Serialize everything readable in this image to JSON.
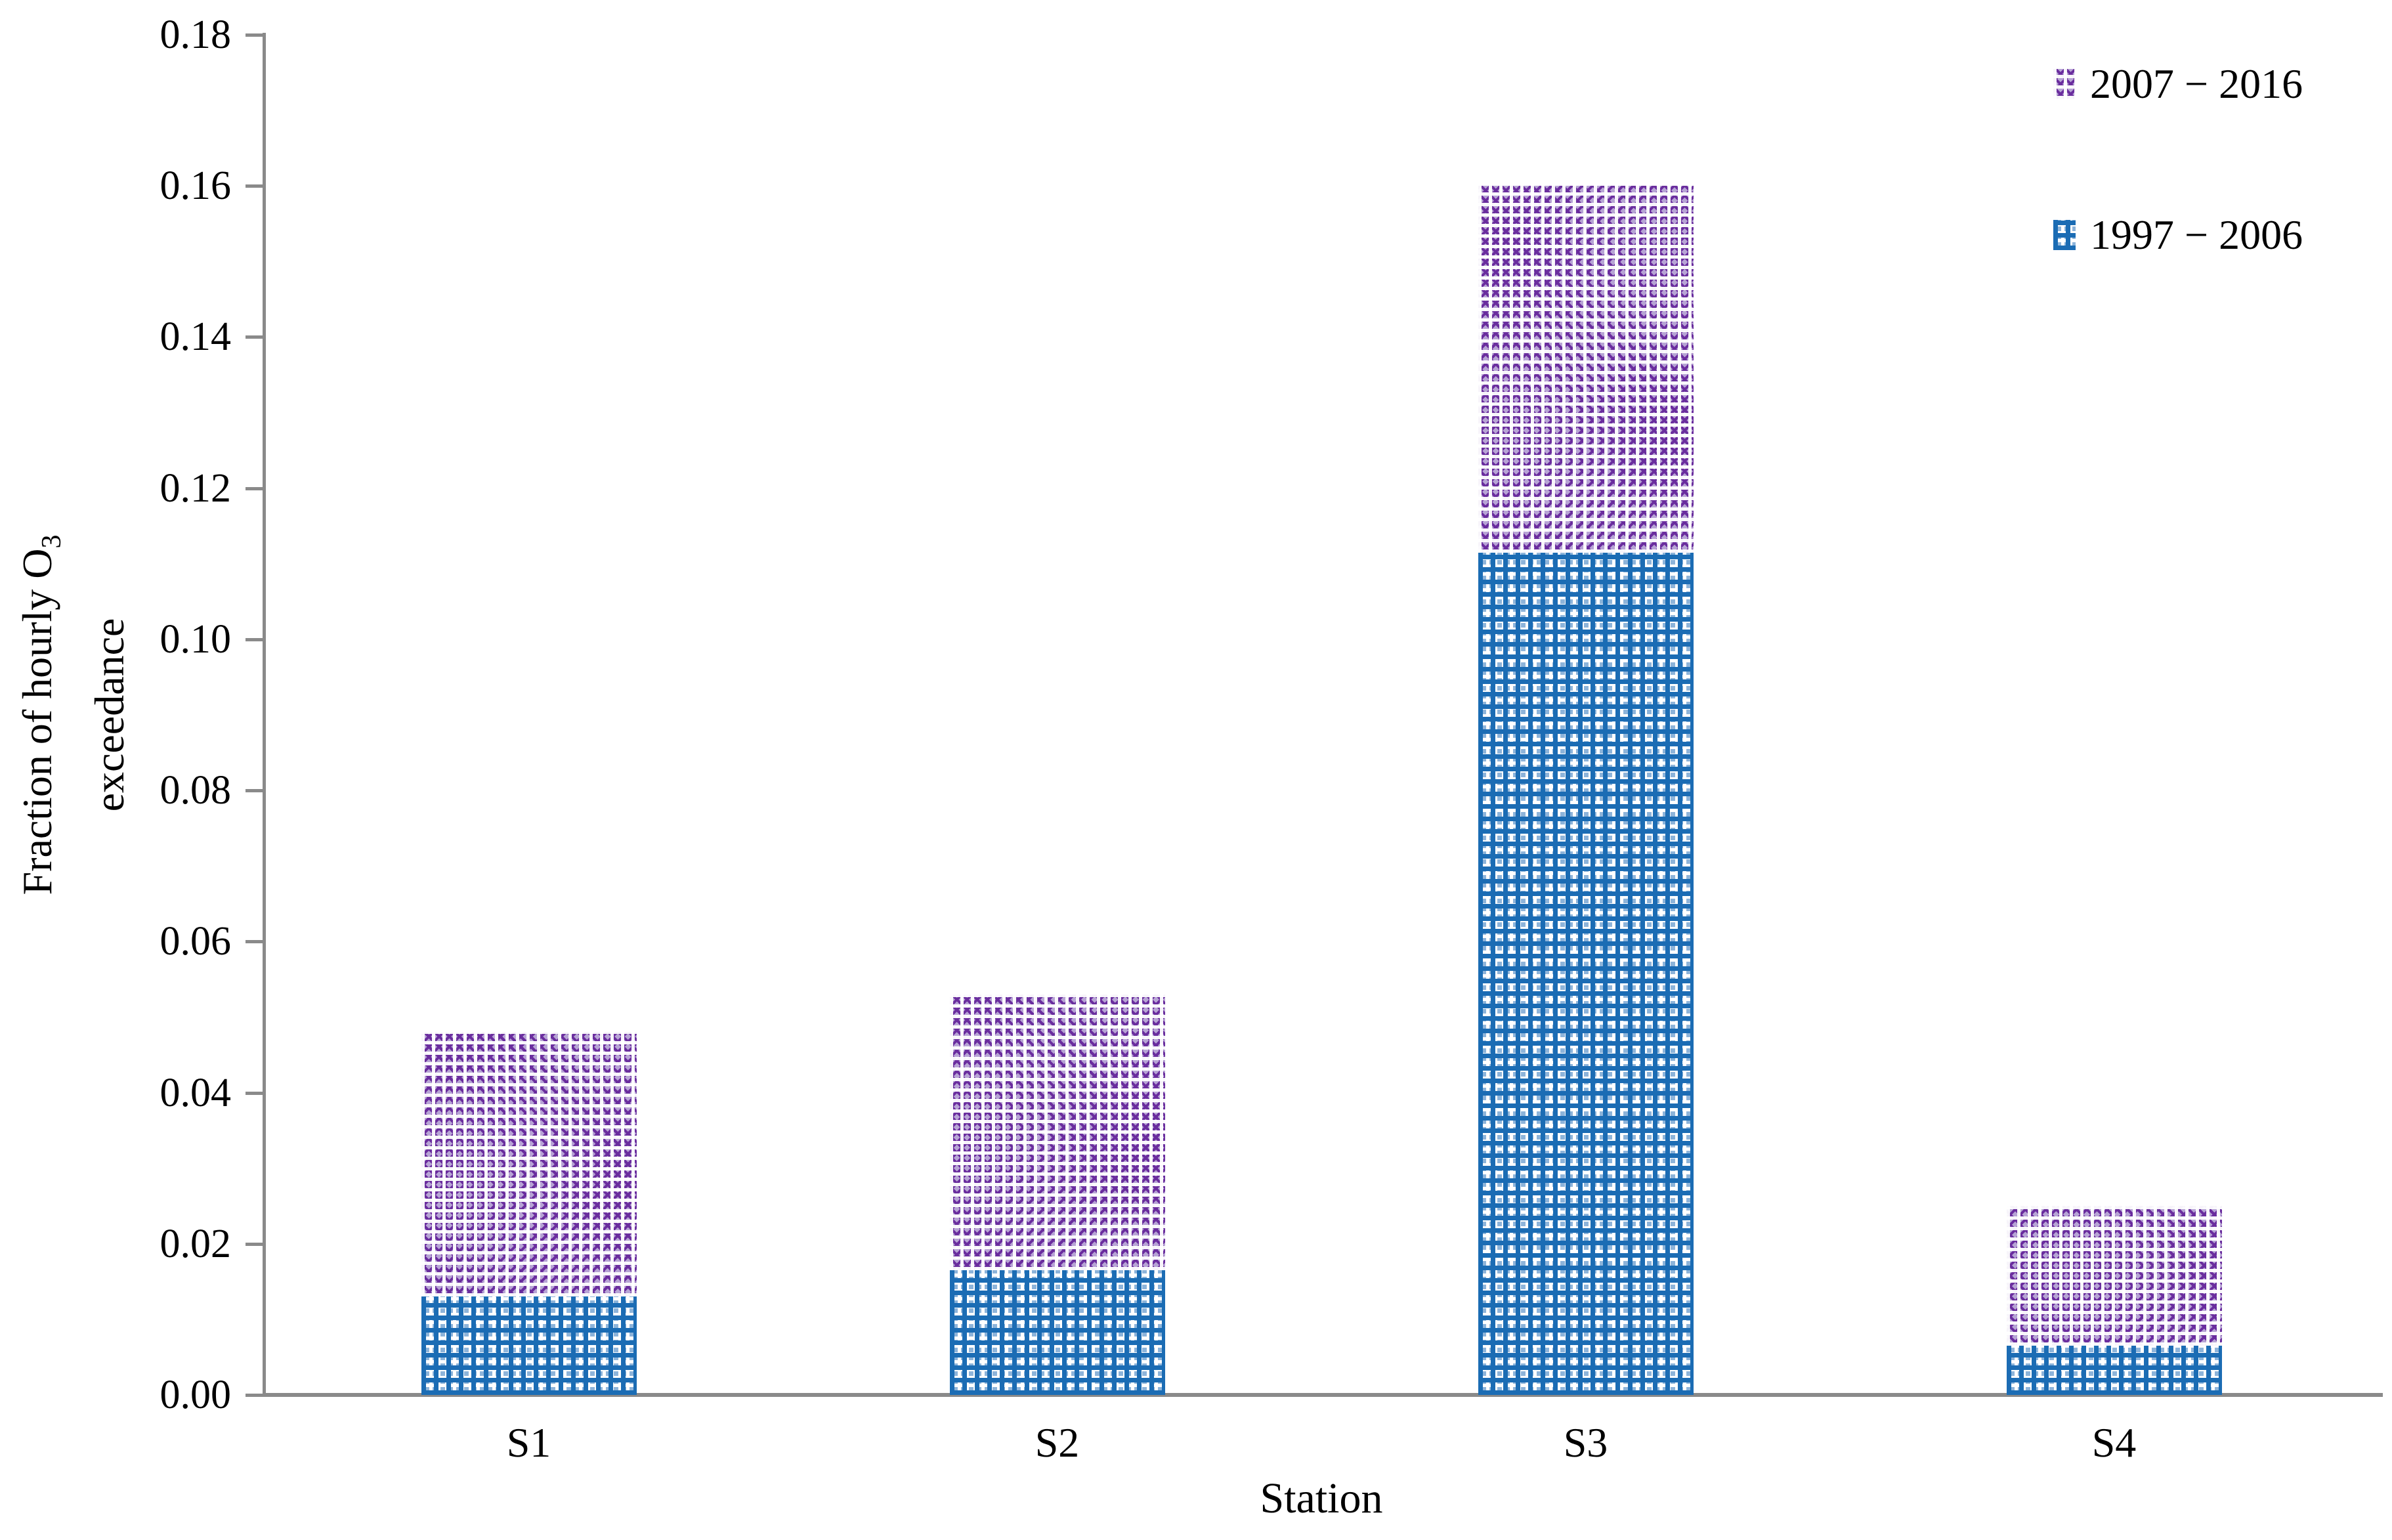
{
  "chart_data": {
    "type": "bar",
    "stacked": true,
    "title": "",
    "xlabel": "Station",
    "ylabel_line1": "Fraction of hourly O",
    "ylabel_sub": "3",
    "ylabel_line2": "exceedance",
    "categories": [
      "S1",
      "S2",
      "S3",
      "S4"
    ],
    "series": [
      {
        "name": "1997 − 2006",
        "pattern": "blue-weave",
        "color": "#1b6cb4",
        "light_color": "#8db4da",
        "values": [
          0.013,
          0.0165,
          0.1115,
          0.0065
        ]
      },
      {
        "name": "2007 − 2016",
        "pattern": "purple-trellis",
        "color": "#6a2d9e",
        "light_color": "#b7a4d5",
        "values": [
          0.035,
          0.0365,
          0.0485,
          0.0185
        ]
      }
    ],
    "stack_totals": [
      0.048,
      0.053,
      0.16,
      0.025
    ],
    "ylim": [
      0,
      0.18
    ],
    "ytick_step": 0.02,
    "ytick_labels": [
      "0.00",
      "0.02",
      "0.04",
      "0.06",
      "0.08",
      "0.10",
      "0.12",
      "0.14",
      "0.16",
      "0.18"
    ],
    "grid": false,
    "legend_position": "top-right",
    "legend_order_top_to_bottom": [
      "2007 − 2016",
      "1997 − 2006"
    ],
    "axis_color": "#8a8a8a",
    "text_color": "#000000"
  }
}
